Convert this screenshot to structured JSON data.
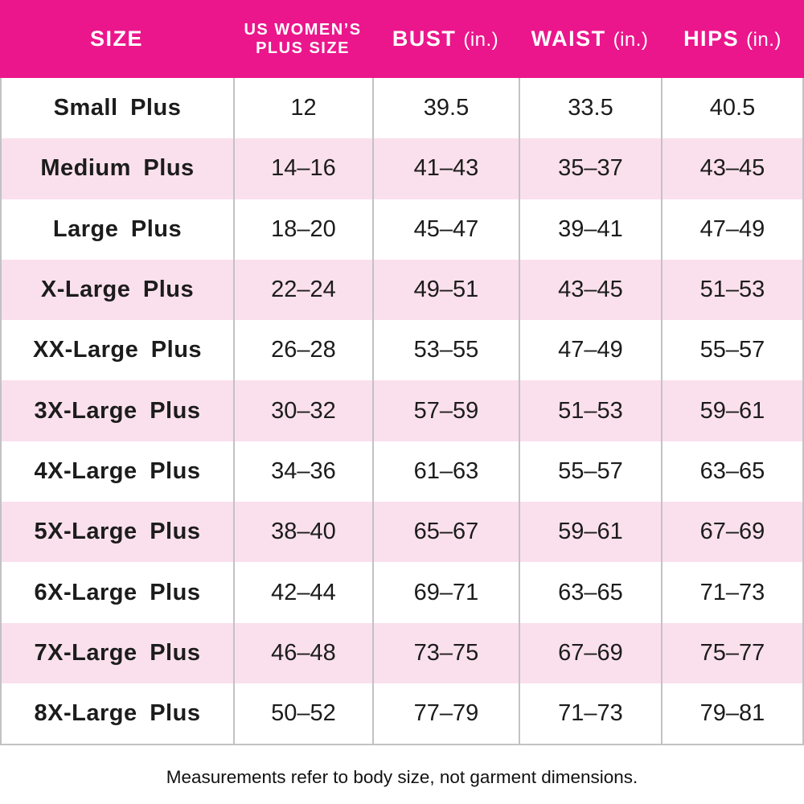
{
  "header": {
    "size": "SIZE",
    "us_plus_line1": "US WOMEN’S",
    "us_plus_line2": "PLUS SIZE",
    "bust": "BUST",
    "waist": "WAIST",
    "hips": "HIPS",
    "unit": "(in.)"
  },
  "rows": [
    {
      "size": "Small Plus",
      "us_plus": "12",
      "bust": "39.5",
      "waist": "33.5",
      "hips": "40.5"
    },
    {
      "size": "Medium Plus",
      "us_plus": "14–16",
      "bust": "41–43",
      "waist": "35–37",
      "hips": "43–45"
    },
    {
      "size": "Large Plus",
      "us_plus": "18–20",
      "bust": "45–47",
      "waist": "39–41",
      "hips": "47–49"
    },
    {
      "size": "X-Large Plus",
      "us_plus": "22–24",
      "bust": "49–51",
      "waist": "43–45",
      "hips": "51–53"
    },
    {
      "size": "XX-Large Plus",
      "us_plus": "26–28",
      "bust": "53–55",
      "waist": "47–49",
      "hips": "55–57"
    },
    {
      "size": "3X-Large Plus",
      "us_plus": "30–32",
      "bust": "57–59",
      "waist": "51–53",
      "hips": "59–61"
    },
    {
      "size": "4X-Large Plus",
      "us_plus": "34–36",
      "bust": "61–63",
      "waist": "55–57",
      "hips": "63–65"
    },
    {
      "size": "5X-Large Plus",
      "us_plus": "38–40",
      "bust": "65–67",
      "waist": "59–61",
      "hips": "67–69"
    },
    {
      "size": "6X-Large Plus",
      "us_plus": "42–44",
      "bust": "69–71",
      "waist": "63–65",
      "hips": "71–73"
    },
    {
      "size": "7X-Large Plus",
      "us_plus": "46–48",
      "bust": "73–75",
      "waist": "67–69",
      "hips": "75–77"
    },
    {
      "size": "8X-Large Plus",
      "us_plus": "50–52",
      "bust": "77–79",
      "waist": "71–73",
      "hips": "79–81"
    }
  ],
  "footer": {
    "note": "Measurements refer to body size, not garment dimensions."
  },
  "colors": {
    "header_bg": "#EB168C",
    "row_alt_bg": "#FAE0EC",
    "border": "#C2C2C6",
    "header_text": "#FFFFFF",
    "body_text": "#1C1C1C"
  },
  "chart_data": {
    "type": "table",
    "title": "Women's plus size chart",
    "columns": [
      "SIZE",
      "US WOMEN’S PLUS SIZE",
      "BUST (in.)",
      "WAIST (in.)",
      "HIPS (in.)"
    ],
    "rows": [
      [
        "Small Plus",
        "12",
        "39.5",
        "33.5",
        "40.5"
      ],
      [
        "Medium Plus",
        "14–16",
        "41–43",
        "35–37",
        "43–45"
      ],
      [
        "Large Plus",
        "18–20",
        "45–47",
        "39–41",
        "47–49"
      ],
      [
        "X-Large Plus",
        "22–24",
        "49–51",
        "43–45",
        "51–53"
      ],
      [
        "XX-Large Plus",
        "26–28",
        "53–55",
        "47–49",
        "55–57"
      ],
      [
        "3X-Large Plus",
        "30–32",
        "57–59",
        "51–53",
        "59–61"
      ],
      [
        "4X-Large Plus",
        "34–36",
        "61–63",
        "55–57",
        "63–65"
      ],
      [
        "5X-Large Plus",
        "38–40",
        "65–67",
        "59–61",
        "67–69"
      ],
      [
        "6X-Large Plus",
        "42–44",
        "69–71",
        "63–65",
        "71–73"
      ],
      [
        "7X-Large Plus",
        "46–48",
        "73–75",
        "67–69",
        "75–77"
      ],
      [
        "8X-Large Plus",
        "50–52",
        "77–79",
        "71–73",
        "79–81"
      ]
    ],
    "footnote": "Measurements refer to body size, not garment dimensions.",
    "layout_hints": {
      "striped_rows": true,
      "stripe_start_row": 2,
      "header_style": "solid-pink"
    }
  }
}
